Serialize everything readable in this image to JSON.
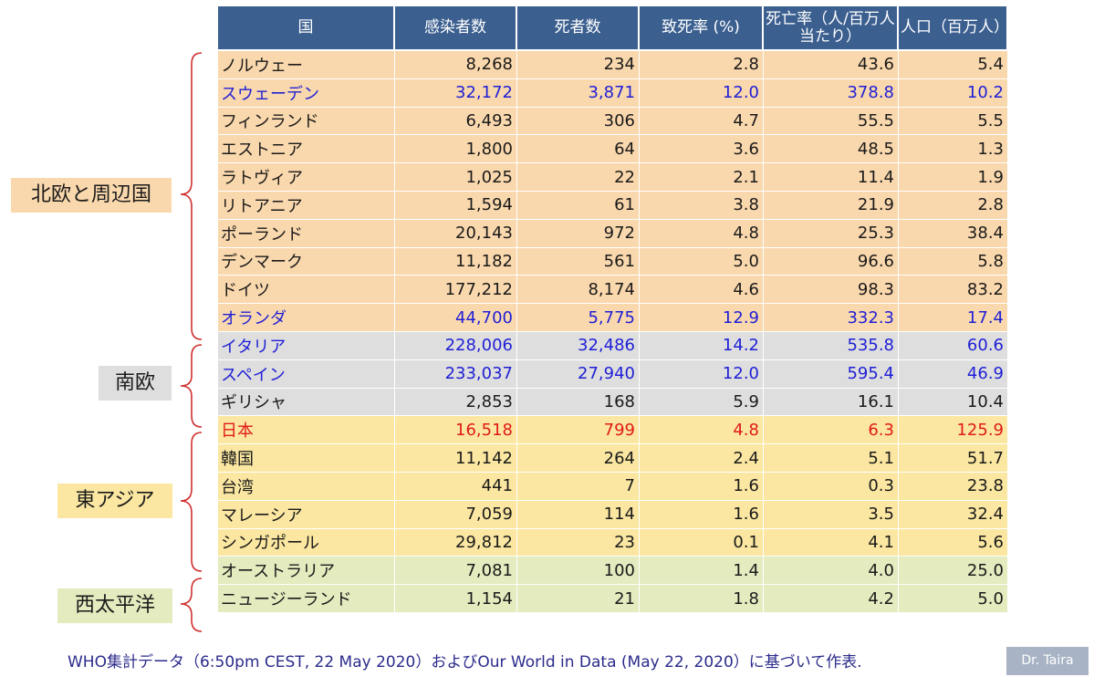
{
  "headers": [
    "国",
    "感染者数",
    "死者数",
    "致死率 (%)",
    "死亡率（人/百万人当たり）",
    "人口（百万人）"
  ],
  "rows": [
    {
      "group": "nordic",
      "hl": "",
      "cells": [
        "ノルウェー",
        "8,268",
        "234",
        "2.8",
        "43.6",
        "5.4"
      ]
    },
    {
      "group": "nordic",
      "hl": "blue",
      "cells": [
        "スウェーデン",
        "32,172",
        "3,871",
        "12.0",
        "378.8",
        "10.2"
      ]
    },
    {
      "group": "nordic",
      "hl": "",
      "cells": [
        "フィンランド",
        "6,493",
        "306",
        "4.7",
        "55.5",
        "5.5"
      ]
    },
    {
      "group": "nordic",
      "hl": "",
      "cells": [
        "エストニア",
        "1,800",
        "64",
        "3.6",
        "48.5",
        "1.3"
      ]
    },
    {
      "group": "nordic",
      "hl": "",
      "cells": [
        "ラトヴィア",
        "1,025",
        "22",
        "2.1",
        "11.4",
        "1.9"
      ]
    },
    {
      "group": "nordic",
      "hl": "",
      "cells": [
        "リトアニア",
        "1,594",
        "61",
        "3.8",
        "21.9",
        "2.8"
      ]
    },
    {
      "group": "nordic",
      "hl": "",
      "cells": [
        "ポーランド",
        "20,143",
        "972",
        "4.8",
        "25.3",
        "38.4"
      ]
    },
    {
      "group": "nordic",
      "hl": "",
      "cells": [
        "デンマーク",
        "11,182",
        "561",
        "5.0",
        "96.6",
        "5.8"
      ]
    },
    {
      "group": "nordic",
      "hl": "",
      "cells": [
        "ドイツ",
        "177,212",
        "8,174",
        "4.6",
        "98.3",
        "83.2"
      ]
    },
    {
      "group": "nordic",
      "hl": "blue",
      "cells": [
        "オランダ",
        "44,700",
        "5,775",
        "12.9",
        "332.3",
        "17.4"
      ]
    },
    {
      "group": "south",
      "hl": "blue",
      "cells": [
        "イタリア",
        "228,006",
        "32,486",
        "14.2",
        "535.8",
        "60.6"
      ]
    },
    {
      "group": "south",
      "hl": "blue",
      "cells": [
        "スペイン",
        "233,037",
        "27,940",
        "12.0",
        "595.4",
        "46.9"
      ]
    },
    {
      "group": "south",
      "hl": "",
      "cells": [
        "ギリシャ",
        "2,853",
        "168",
        "5.9",
        "16.1",
        "10.4"
      ]
    },
    {
      "group": "east",
      "hl": "red",
      "cells": [
        "日本",
        "16,518",
        "799",
        "4.8",
        "6.3",
        "125.9"
      ]
    },
    {
      "group": "east",
      "hl": "",
      "cells": [
        "韓国",
        "11,142",
        "264",
        "2.4",
        "5.1",
        "51.7"
      ]
    },
    {
      "group": "east",
      "hl": "",
      "cells": [
        "台湾",
        "441",
        "7",
        "1.6",
        "0.3",
        "23.8"
      ]
    },
    {
      "group": "east",
      "hl": "",
      "cells": [
        "マレーシア",
        "7,059",
        "114",
        "1.6",
        "3.5",
        "32.4"
      ]
    },
    {
      "group": "east",
      "hl": "",
      "cells": [
        "シンガポール",
        "29,812",
        "23",
        "0.1",
        "4.1",
        "5.6"
      ]
    },
    {
      "group": "pacific",
      "hl": "",
      "cells": [
        "オーストラリア",
        "7,081",
        "100",
        "1.4",
        "4.0",
        "25.0"
      ]
    },
    {
      "group": "pacific",
      "hl": "",
      "cells": [
        "ニュージーランド",
        "1,154",
        "21",
        "1.8",
        "4.2",
        "5.0"
      ]
    }
  ],
  "groups": {
    "nordic": "北欧と周辺国",
    "south": "南欧",
    "east": "東アジア",
    "pacific": "西太平洋"
  },
  "colors": {
    "header_bg": "#3b5f8f",
    "nordic": "#fad8ad",
    "south": "#dedede",
    "east": "#fbe7a1",
    "pacific": "#e3ebbf",
    "highlight_blue": "#1f1fd6",
    "highlight_red": "#e01a1a",
    "bracket": "#d03030"
  },
  "footer": "WHO集計データ（6:50pm CEST, 22 May 2020）およびOur World in Data (May 22, 2020）に基づいて作表.",
  "credit": "Dr. Taira"
}
